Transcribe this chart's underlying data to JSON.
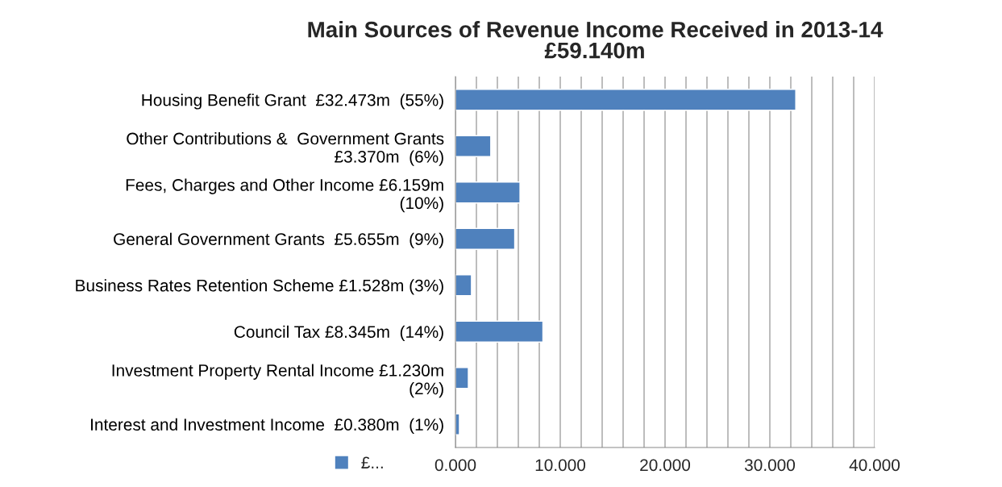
{
  "chart_data": {
    "type": "bar",
    "orientation": "horizontal",
    "title": "Main Sources of Revenue Income Received in 2013-14\n£59.140m",
    "categories": [
      "Housing Benefit Grant  £32.473m  (55%)",
      "Other Contributions &  Government Grants\n£3.370m  (6%)",
      "Fees, Charges and Other Income £6.159m\n(10%)",
      "General Government Grants  £5.655m  (9%)",
      "Business Rates Retention Scheme £1.528m (3%)",
      "Council Tax £8.345m  (14%)",
      "Investment Property Rental Income £1.230m\n(2%)",
      "Interest and Investment Income  £0.380m  (1%)"
    ],
    "series": [
      {
        "name": "£...",
        "color": "#4f81bd",
        "values": [
          32.473,
          3.37,
          6.159,
          5.655,
          1.528,
          8.345,
          1.23,
          0.38
        ]
      }
    ],
    "xlim": [
      0,
      40
    ],
    "xticks": [
      {
        "value": 0,
        "label": "0.000"
      },
      {
        "value": 2,
        "label": null
      },
      {
        "value": 4,
        "label": null
      },
      {
        "value": 6,
        "label": null
      },
      {
        "value": 8,
        "label": null
      },
      {
        "value": 10,
        "label": "10.000"
      },
      {
        "value": 12,
        "label": null
      },
      {
        "value": 14,
        "label": null
      },
      {
        "value": 16,
        "label": null
      },
      {
        "value": 18,
        "label": null
      },
      {
        "value": 20,
        "label": "20.000"
      },
      {
        "value": 22,
        "label": null
      },
      {
        "value": 24,
        "label": null
      },
      {
        "value": 26,
        "label": null
      },
      {
        "value": 28,
        "label": null
      },
      {
        "value": 30,
        "label": "30.000"
      },
      {
        "value": 32,
        "label": null
      },
      {
        "value": 34,
        "label": null
      },
      {
        "value": 36,
        "label": null
      },
      {
        "value": 38,
        "label": null
      },
      {
        "value": 40,
        "label": "40.000"
      }
    ],
    "grid": "x",
    "legend": "bottom left"
  }
}
